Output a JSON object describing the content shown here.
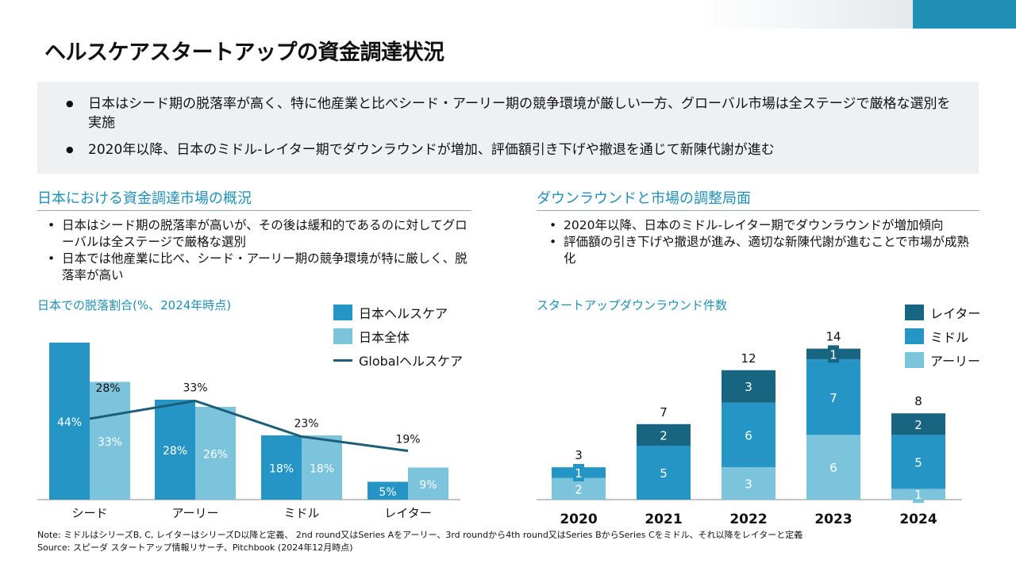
{
  "title": "ヘルスケアスタートアップの資金調達状況",
  "summary": [
    "日本はシード期の脱落率が高く、特に他産業と比べシード・アーリー期の競争環境が厳しい一方、グローバル市場は全ステージで厳格な選別を実施",
    "2020年以降、日本のミドル-レイター期でダウンラウンドが増加、評価額引き下げや撤退を通じて新陳代謝が進む"
  ],
  "left": {
    "heading": "日本における資金調達市場の概況",
    "bullets": [
      "日本はシード期の脱落率が高いが、その後は緩和的であるのに対してグローバルは全ステージで厳格な選別",
      "日本では他産業に比べ、シード・アーリー期の競争環境が特に厳しく、脱落率が高い"
    ]
  },
  "right": {
    "heading": "ダウンラウンドと市場の調整局面",
    "bullets": [
      "2020年以降、日本のミドル-レイター期でダウンラウンドが増加傾向",
      "評価額の引き下げや撤退が進み、適切な新陳代謝が進むことで市場が成熟化"
    ]
  },
  "colors": {
    "dark": "#186582",
    "mid": "#2595c5",
    "light": "#7cc3dc",
    "line": "#1c5d78",
    "accent": "#1f8fb5"
  },
  "chart_data": [
    {
      "type": "bar",
      "title": "日本での脱落割合(%、2024年時点)",
      "categories": [
        "シード",
        "アーリー",
        "ミドル",
        "レイター"
      ],
      "series": [
        {
          "name": "日本ヘルスケア",
          "values": [
            44,
            28,
            18,
            5
          ]
        },
        {
          "name": "日本全体",
          "values": [
            33,
            26,
            18,
            9
          ]
        },
        {
          "name": "Globalヘルスケア",
          "type": "line",
          "values": [
            28,
            33,
            23,
            19
          ]
        }
      ],
      "ylim": [
        0,
        50
      ]
    },
    {
      "type": "bar",
      "stacked": true,
      "title": "スタートアップダウンラウンド件数",
      "categories": [
        "2020",
        "2021",
        "2022",
        "2023",
        "2024"
      ],
      "series": [
        {
          "name": "アーリー",
          "values": [
            2,
            0,
            3,
            6,
            1
          ]
        },
        {
          "name": "ミドル",
          "values": [
            1,
            5,
            6,
            7,
            5
          ]
        },
        {
          "name": "レイター",
          "values": [
            0,
            2,
            3,
            1,
            2
          ]
        }
      ],
      "totals": [
        3,
        7,
        12,
        14,
        8
      ],
      "ylim": [
        0,
        16
      ]
    }
  ],
  "footnotes": [
    "Note: ミドルはシリーズB, C, レイターはシリーズD以降と定義、 2nd round又はSeries Aをアーリー、3rd roundから4th round又はSeries BからSeries Cをミドル、それ以降をレイターと定義",
    "Source: スピーダ スタートアップ情報リサーチ、Pitchbook (2024年12月時点)"
  ]
}
